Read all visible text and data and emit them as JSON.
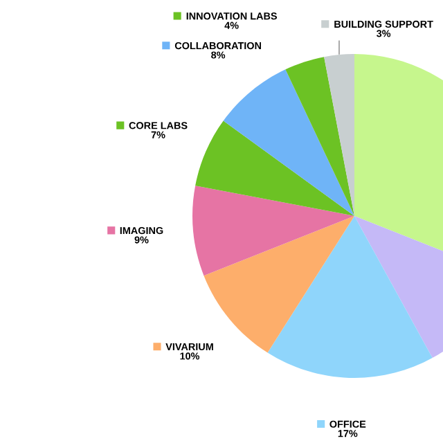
{
  "chart_data": {
    "type": "pie",
    "categories": [
      null,
      null,
      "OFFICE",
      "VIVARIUM",
      "IMAGING",
      "CORE LABS",
      "COLLABORATION",
      "INNOVATION LABS",
      "BUILDING SUPPORT"
    ],
    "values": [
      31,
      11,
      17,
      10,
      9,
      7,
      8,
      4,
      3
    ],
    "value_labels": [
      null,
      null,
      "17%",
      "10%",
      "9%",
      "7%",
      "8%",
      "4%",
      "3%"
    ],
    "legend": "left",
    "colors": [
      "#c6f68d",
      "#c5b9f7",
      "#8fd5fb",
      "#fdae6b",
      "#e674a4",
      "#6cc224",
      "#6fb4f7",
      "#6cc224",
      "#c8cfd0"
    ]
  }
}
